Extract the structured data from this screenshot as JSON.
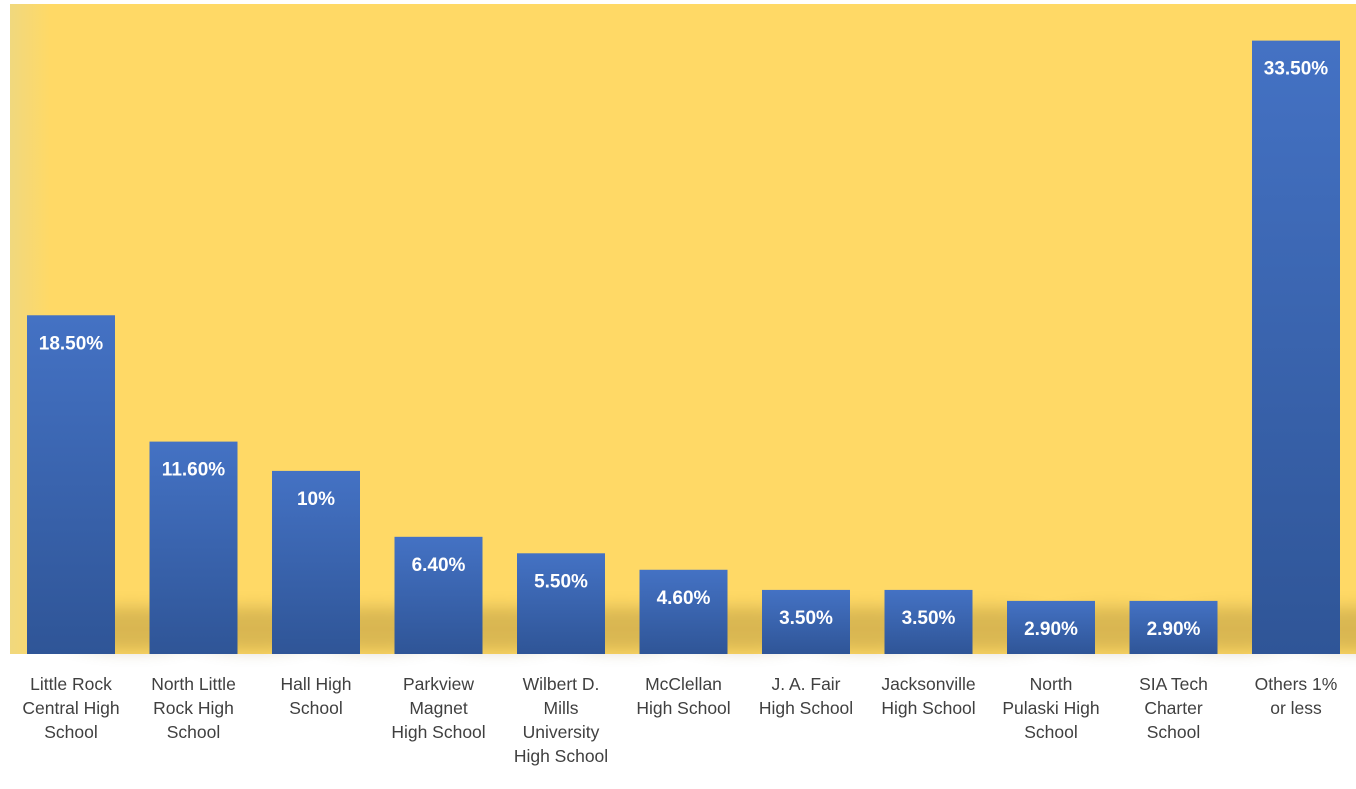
{
  "chart_data": {
    "type": "bar",
    "title": "",
    "xlabel": "",
    "ylabel": "",
    "ylim": [
      0,
      35.5
    ],
    "grid": false,
    "legend": "none",
    "categories": [
      "Little Rock Central High School",
      "North Little Rock High School",
      "Hall High School",
      "Parkview Magnet High School",
      "Wilbert D. Mills University High School",
      "McClellan High School",
      "J. A. Fair High School",
      "Jacksonville High School",
      "North Pulaski High School",
      "SIA Tech Charter School",
      "Others 1% or less"
    ],
    "category_lines": [
      [
        "Little Rock",
        "Central High",
        "School"
      ],
      [
        "North Little",
        "Rock High",
        "School"
      ],
      [
        "Hall High",
        "School"
      ],
      [
        "Parkview",
        "Magnet",
        "High School"
      ],
      [
        "Wilbert D.",
        "Mills",
        "University",
        "High School"
      ],
      [
        "McClellan",
        "High School"
      ],
      [
        "J. A. Fair",
        "High School"
      ],
      [
        "Jacksonville",
        "High School"
      ],
      [
        "North",
        "Pulaski High",
        "School"
      ],
      [
        "SIA Tech",
        "Charter",
        "School"
      ],
      [
        "Others 1%",
        "or less"
      ]
    ],
    "values": [
      18.5,
      11.6,
      10,
      6.4,
      5.5,
      4.6,
      3.5,
      3.5,
      2.9,
      2.9,
      33.5
    ],
    "data_labels": [
      "18.50%",
      "11.60%",
      "10%",
      "6.40%",
      "5.50%",
      "4.60%",
      "3.50%",
      "3.50%",
      "2.90%",
      "2.90%",
      "33.50%"
    ]
  },
  "colors": {
    "plot_background": "#FFD966",
    "bar_top": "#4472C4",
    "bar_bottom": "#2F5597",
    "data_label": "#FFFFFF",
    "axis_label": "#404040",
    "page_background": "#FFFFFF"
  }
}
